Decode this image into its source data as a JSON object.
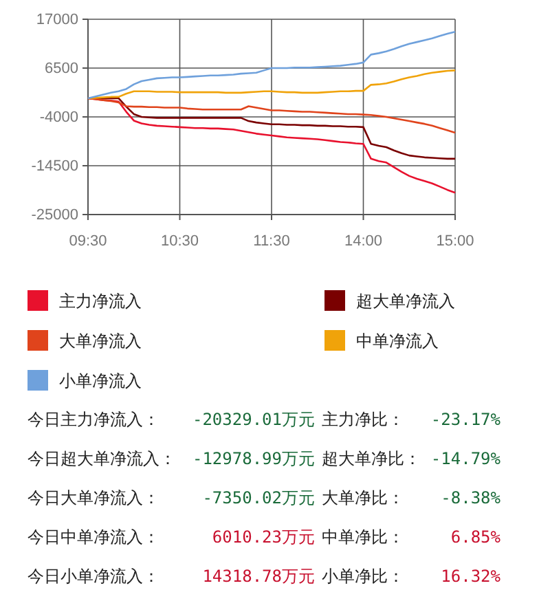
{
  "chart_data": {
    "type": "line",
    "categories": [
      "09:30",
      null,
      null,
      null,
      null,
      null,
      null,
      null,
      null,
      null,
      null,
      null,
      "10:30",
      null,
      null,
      null,
      null,
      null,
      null,
      null,
      null,
      null,
      null,
      null,
      "11:30",
      null,
      null,
      null,
      null,
      null,
      null,
      null,
      null,
      null,
      null,
      null,
      "14:00",
      null,
      null,
      null,
      null,
      null,
      null,
      null,
      null,
      null,
      null,
      null,
      "15:00"
    ],
    "ylim": [
      -25000,
      17000
    ],
    "yticks": [
      -25000,
      -14500,
      -4000,
      6500,
      17000
    ],
    "grid": true,
    "legend": "bottom",
    "marker": "none",
    "line_style": "solid",
    "series": [
      {
        "name": "主力净流入",
        "color": "#e8112d",
        "values": [
          0,
          -200,
          -400,
          -500,
          -700,
          -2900,
          -4800,
          -5400,
          -5700,
          -5900,
          -6000,
          -6100,
          -6200,
          -6300,
          -6400,
          -6400,
          -6500,
          -6500,
          -6600,
          -6700,
          -7000,
          -7300,
          -7600,
          -7800,
          -8000,
          -8200,
          -8400,
          -8500,
          -8600,
          -8700,
          -8800,
          -9000,
          -9200,
          -9400,
          -9500,
          -9700,
          -9800,
          -13000,
          -13500,
          -13800,
          -14800,
          -15800,
          -16700,
          -17300,
          -17800,
          -18300,
          -19000,
          -19700,
          -20300
        ]
      },
      {
        "name": "超大单净流入",
        "color": "#7a0000",
        "values": [
          0,
          0,
          0,
          0,
          0,
          -1800,
          -3400,
          -4000,
          -4100,
          -4200,
          -4200,
          -4200,
          -4200,
          -4200,
          -4200,
          -4200,
          -4200,
          -4200,
          -4200,
          -4200,
          -4200,
          -4900,
          -5200,
          -5400,
          -5600,
          -5600,
          -5700,
          -5700,
          -5800,
          -5800,
          -5900,
          -5900,
          -6000,
          -6000,
          -6100,
          -6100,
          -6200,
          -9800,
          -10200,
          -10500,
          -11200,
          -11800,
          -12300,
          -12500,
          -12700,
          -12800,
          -12900,
          -13000,
          -13000
        ]
      },
      {
        "name": "大单净流入",
        "color": "#e0441c",
        "values": [
          0,
          -200,
          -400,
          -600,
          -900,
          -1700,
          -1800,
          -1800,
          -1900,
          -1900,
          -2000,
          -2000,
          -2000,
          -2200,
          -2300,
          -2400,
          -2400,
          -2400,
          -2400,
          -2400,
          -2400,
          -1700,
          -2000,
          -2300,
          -2600,
          -2600,
          -2700,
          -2800,
          -2900,
          -2900,
          -3000,
          -3100,
          -3200,
          -3300,
          -3400,
          -3400,
          -3500,
          -3600,
          -3800,
          -4000,
          -4300,
          -4600,
          -4900,
          -5200,
          -5500,
          -5900,
          -6400,
          -6900,
          -7400
        ]
      },
      {
        "name": "中单净流入",
        "color": "#f0a30a",
        "values": [
          0,
          100,
          200,
          300,
          300,
          1000,
          1500,
          1500,
          1500,
          1400,
          1400,
          1400,
          1300,
          1300,
          1300,
          1300,
          1300,
          1300,
          1200,
          1200,
          1200,
          1300,
          1400,
          1500,
          1500,
          1400,
          1300,
          1300,
          1200,
          1200,
          1200,
          1300,
          1400,
          1500,
          1500,
          1600,
          1600,
          2900,
          3000,
          3200,
          3600,
          4100,
          4500,
          4800,
          5200,
          5500,
          5700,
          5900,
          6000
        ]
      },
      {
        "name": "小单净流入",
        "color": "#6fa1dc",
        "values": [
          0,
          400,
          800,
          1200,
          1500,
          2000,
          3000,
          3700,
          4000,
          4300,
          4400,
          4500,
          4500,
          4600,
          4700,
          4800,
          4900,
          4900,
          5000,
          5100,
          5300,
          5400,
          5500,
          6000,
          6500,
          6500,
          6500,
          6600,
          6600,
          6600,
          6700,
          6800,
          6900,
          7000,
          7200,
          7400,
          7700,
          9400,
          9700,
          10100,
          10600,
          11200,
          11700,
          12100,
          12500,
          12900,
          13400,
          13900,
          14300
        ]
      }
    ],
    "annotations": [
      "今日主力净流入：",
      "-20329.01万元",
      "主力净比：",
      "-23.17%",
      "今日超大单净流入：",
      "-12978.99万元",
      "超大单净比：",
      "-14.79%",
      "今日大单净流入：",
      "-7350.02万元",
      "大单净比：",
      "-8.38%",
      "今日中单净流入：",
      "6010.23万元",
      "中单净比：",
      "6.85%",
      "今日小单净流入：",
      "14318.78万元",
      "小单净比：",
      "16.32%"
    ]
  }
}
